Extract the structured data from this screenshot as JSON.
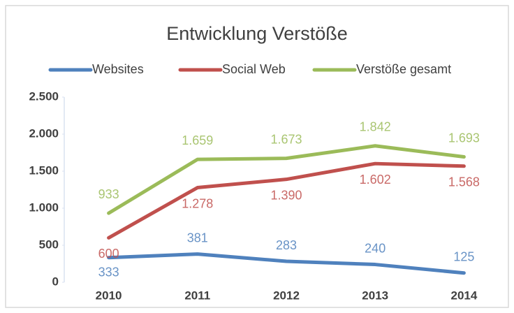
{
  "chart_data": {
    "type": "line",
    "title": "Entwicklung Verstöße",
    "categories": [
      "2010",
      "2011",
      "2012",
      "2013",
      "2014"
    ],
    "series": [
      {
        "name": "Websites",
        "color": "#4f81bd",
        "values": [
          333,
          381,
          283,
          240,
          125
        ],
        "value_labels": [
          "333",
          "381",
          "283",
          "240",
          "125"
        ]
      },
      {
        "name": "Social Web",
        "color": "#c0504d",
        "values": [
          600,
          1278,
          1390,
          1602,
          1568
        ],
        "value_labels": [
          "600",
          "1.278",
          "1.390",
          "1.602",
          "1.568"
        ]
      },
      {
        "name": "Verstöße gesamt",
        "color": "#9bbb59",
        "values": [
          933,
          1659,
          1673,
          1842,
          1693
        ],
        "value_labels": [
          "933",
          "1.659",
          "1.673",
          "1.842",
          "1.693"
        ]
      }
    ],
    "ylim": [
      0,
      2500
    ],
    "yticks": [
      0,
      500,
      {
        "value": 1000,
        "label": "1.000"
      },
      {
        "value": 1500,
        "label": "1.500"
      },
      {
        "value": 2000,
        "label": "2.000"
      },
      {
        "value": 2500,
        "label": "2.500"
      }
    ],
    "legend": "top",
    "grid": false
  }
}
